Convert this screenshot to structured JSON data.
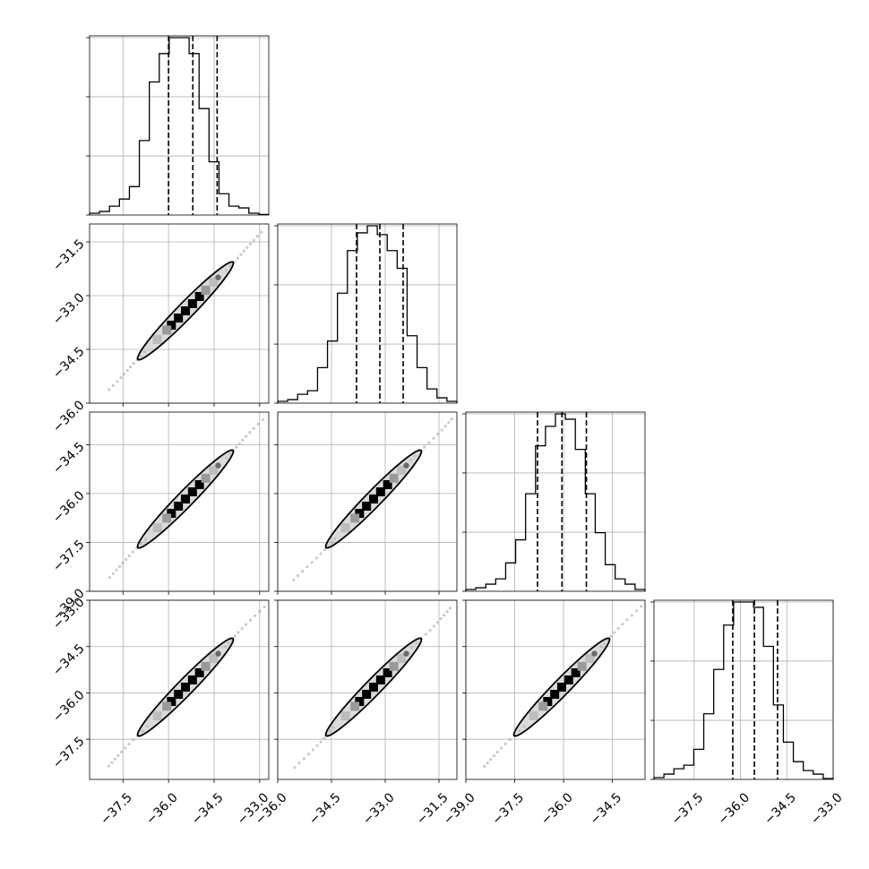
{
  "chart_data": {
    "type": "corner",
    "dimensions": 4,
    "quantiles": [
      0.16,
      0.5,
      0.84
    ],
    "grid": true,
    "parameters": [
      {
        "range": [
          -38.6,
          -32.7
        ],
        "ticks": [
          -37.5,
          -36.0,
          -34.5,
          -33.0
        ],
        "tick_labels": [
          "−37.5",
          "−36.0",
          "−34.5",
          "−33.0"
        ],
        "quantile_values": [
          -36.0,
          -35.2,
          -34.4
        ],
        "histogram": [
          0.01,
          0.02,
          0.05,
          0.09,
          0.16,
          0.42,
          0.75,
          0.91,
          1.0,
          1.0,
          0.91,
          0.6,
          0.3,
          0.12,
          0.05,
          0.04,
          0.01,
          0.003
        ]
      },
      {
        "range": [
          -36.0,
          -31.0
        ],
        "ticks": [
          -36.0,
          -34.5,
          -33.0,
          -31.5
        ],
        "tick_labels": [
          "−36.0",
          "−34.5",
          "−33.0",
          "−31.5"
        ],
        "quantile_values": [
          -33.8,
          -33.15,
          -32.5
        ],
        "histogram": [
          0.01,
          0.02,
          0.05,
          0.07,
          0.2,
          0.35,
          0.62,
          0.86,
          0.96,
          1.0,
          0.95,
          0.86,
          0.76,
          0.38,
          0.2,
          0.08,
          0.03,
          0.01
        ]
      },
      {
        "range": [
          -39.0,
          -33.5
        ],
        "ticks": [
          -39.0,
          -37.5,
          -36.0,
          -34.5
        ],
        "tick_labels": [
          "−39.0",
          "−37.5",
          "−36.0",
          "−34.5"
        ],
        "quantile_values": [
          -36.8,
          -36.05,
          -35.3
        ],
        "histogram": [
          0.01,
          0.02,
          0.04,
          0.07,
          0.16,
          0.29,
          0.55,
          0.82,
          0.93,
          1.0,
          0.97,
          0.8,
          0.55,
          0.33,
          0.15,
          0.07,
          0.04,
          0.01
        ]
      },
      {
        "range": [
          -38.8,
          -33.0
        ],
        "ticks": [
          -37.5,
          -36.0,
          -34.5,
          -33.0
        ],
        "tick_labels": [
          "−37.5",
          "−36.0",
          "−34.5",
          "−33.0"
        ],
        "quantile_values": [
          -36.25,
          -35.55,
          -34.8
        ],
        "histogram": [
          0.01,
          0.03,
          0.06,
          0.08,
          0.17,
          0.37,
          0.62,
          0.87,
          1.0,
          1.0,
          0.97,
          0.75,
          0.42,
          0.21,
          0.1,
          0.05,
          0.03,
          0.005
        ]
      }
    ],
    "y_tick_labels": [
      [],
      [
        "−31.5",
        "−33.0",
        "−34.5",
        "−36.0"
      ],
      [
        "−34.5",
        "−36.0",
        "−37.5",
        "−39.0"
      ],
      [
        "−33.0",
        "−34.5",
        "−36.0",
        "−37.5"
      ]
    ],
    "correlation": "strong positive linear (≈ 1) between all parameter pairs"
  },
  "colors": {
    "line": "#000000",
    "grid": "#b0b0b0",
    "density_dark": "#000000",
    "density_light": "#bdbdbd"
  }
}
